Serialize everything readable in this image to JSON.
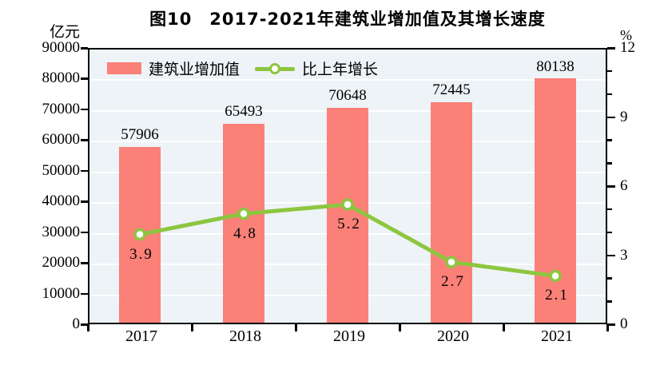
{
  "title": "图10　2017-2021年建筑业增加值及其增长速度",
  "left_axis_unit": "亿元",
  "right_axis_unit": "%",
  "legend": {
    "bar_label": "建筑业增加值",
    "line_label": "比上年增长"
  },
  "colors": {
    "bar": "#fa8078",
    "line": "#8dc63f",
    "marker_fill": "#ffffff",
    "plot_background": "#edf3f7",
    "gridline": "#ffffff",
    "axis": "#000000"
  },
  "chart_data": {
    "type": "bar",
    "subtype": "bar+line combo, dual axis",
    "title": "图10　2017-2021年建筑业增加值及其增长速度",
    "categories": [
      "2017",
      "2018",
      "2019",
      "2020",
      "2021"
    ],
    "series": [
      {
        "name": "建筑业增加值",
        "type": "bar",
        "axis": "left",
        "values": [
          57906,
          65493,
          70648,
          72445,
          80138
        ]
      },
      {
        "name": "比上年增长",
        "type": "line",
        "axis": "right",
        "values": [
          3.9,
          4.8,
          5.2,
          2.7,
          2.1
        ]
      }
    ],
    "left_axis": {
      "unit": "亿元",
      "min": 0,
      "max": 90000,
      "tick_step": 10000,
      "tick_labels": [
        "90000",
        "80000",
        "70000",
        "60000",
        "50000",
        "40000",
        "30000",
        "20000",
        "10000",
        "0"
      ]
    },
    "right_axis": {
      "unit": "%",
      "min": 0,
      "max": 12,
      "major_tick_step": 3,
      "minor_tick_step": 1,
      "tick_labels": [
        "12",
        "9",
        "6",
        "3",
        "0"
      ]
    },
    "grid": true,
    "legend_position": "top-left-inside",
    "bar_value_labels": [
      "57906",
      "65493",
      "70648",
      "72445",
      "80138"
    ],
    "line_value_labels": [
      "3.9",
      "4.8",
      "5.2",
      "2.7",
      "2.1"
    ]
  }
}
